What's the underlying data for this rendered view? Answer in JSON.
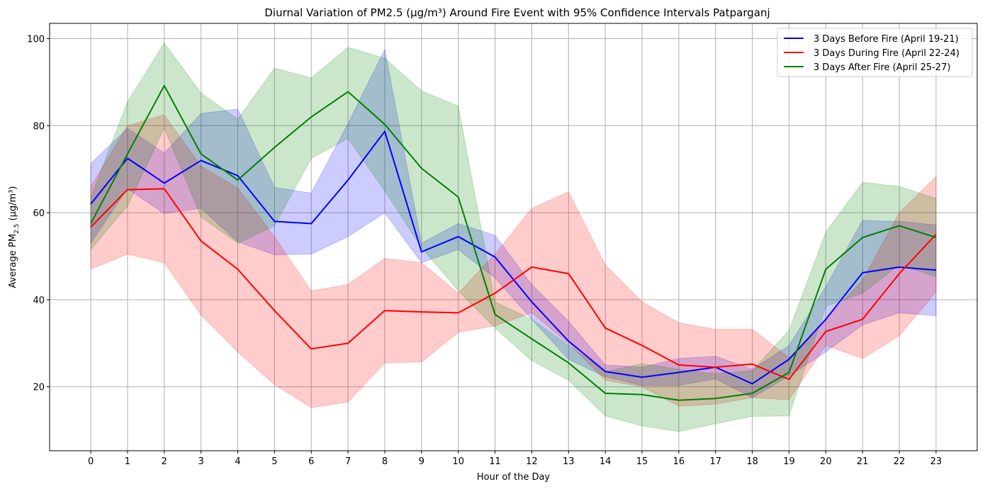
{
  "chart_data": {
    "type": "line",
    "title": "Diurnal Variation of PM2.5 (µg/m³) Around Fire Event with 95% Confidence Intervals Patparganj",
    "xlabel": "Hour of the Day",
    "ylabel_prefix": "Average PM",
    "ylabel_sub": "2.5",
    "ylabel_suffix": " (µg/m³)",
    "x": [
      0,
      1,
      2,
      3,
      4,
      5,
      6,
      7,
      8,
      9,
      10,
      11,
      12,
      13,
      14,
      15,
      16,
      17,
      18,
      19,
      20,
      21,
      22,
      23
    ],
    "xticks": [
      "0",
      "1",
      "2",
      "3",
      "4",
      "5",
      "6",
      "7",
      "8",
      "9",
      "10",
      "11",
      "12",
      "13",
      "14",
      "15",
      "16",
      "17",
      "18",
      "19",
      "20",
      "21",
      "22",
      "23"
    ],
    "xlim": [
      -1.12,
      24.12
    ],
    "ylim": [
      5.3,
      103.5
    ],
    "yticks": [
      20,
      40,
      60,
      80,
      100
    ],
    "ytick_labels": [
      "20",
      "40",
      "60",
      "80",
      "100"
    ],
    "grid": true,
    "legend_position": "top-right",
    "series": [
      {
        "name": "3 Days Before Fire (April 19-21)",
        "color": "#0000ff",
        "values": [
          62,
          72.5,
          66.8,
          72,
          68.5,
          58,
          57.5,
          67.5,
          78.7,
          51,
          54.5,
          49.8,
          39.5,
          30.5,
          23.5,
          22.2,
          23.3,
          24.5,
          20.7,
          26.3,
          35.5,
          46.2,
          47.5,
          46.8
        ],
        "ci_low": [
          53,
          65.5,
          59.8,
          61,
          53.3,
          50.3,
          50.5,
          54.5,
          60,
          48.5,
          51.5,
          45,
          35.5,
          26.3,
          22.3,
          20.3,
          20.3,
          21.8,
          17.5,
          22.5,
          28,
          34.2,
          37,
          36.3
        ],
        "ci_high": [
          71.3,
          79.4,
          73.7,
          82.8,
          83.8,
          65.8,
          64.5,
          80.5,
          97.5,
          53,
          57.5,
          54.8,
          43.5,
          35,
          25,
          24.5,
          26.5,
          27,
          24,
          29.5,
          43,
          58.2,
          58,
          57.2
        ]
      },
      {
        "name": "3 Days During Fire (April 22-24)",
        "color": "#ff0000",
        "values": [
          56.7,
          65.3,
          65.5,
          53.5,
          47,
          37.5,
          28.7,
          30,
          37.5,
          37.2,
          37,
          41.5,
          47.5,
          46,
          33.5,
          29.5,
          25,
          24.5,
          25.2,
          21.7,
          32.7,
          35.5,
          46,
          55
        ],
        "ci_low": [
          47,
          50.5,
          48.5,
          36.5,
          28,
          20.5,
          15.2,
          16.5,
          25.5,
          25.7,
          32.5,
          34,
          37,
          30,
          21.5,
          20,
          15.5,
          16,
          17.5,
          17,
          29.5,
          26.5,
          31.7,
          41.8
        ],
        "ci_high": [
          66,
          80,
          82.5,
          70.7,
          65.7,
          54.5,
          42,
          43.5,
          49.5,
          48.5,
          41.5,
          50.5,
          61,
          64.8,
          48,
          39.5,
          34.7,
          33.2,
          33.2,
          26.7,
          35.5,
          44.5,
          60,
          68.3
        ]
      },
      {
        "name": "3 Days After Fire (April 25-27)",
        "color": "#008000",
        "values": [
          57.5,
          73.5,
          89.2,
          73.5,
          67.5,
          75,
          82,
          87.8,
          80.3,
          70.2,
          63.6,
          36.6,
          31,
          25.5,
          18.5,
          18.2,
          16.9,
          17.3,
          18.5,
          23.3,
          47,
          54.3,
          57,
          54.3
        ],
        "ci_low": [
          51.5,
          61.5,
          79.5,
          59,
          53,
          57,
          72.5,
          77,
          65,
          52,
          42,
          33.5,
          26,
          21.5,
          13.3,
          11,
          9.7,
          11.5,
          13.2,
          13.3,
          38.5,
          41.5,
          48,
          45.3
        ],
        "ci_high": [
          63.5,
          85.5,
          99,
          87.5,
          81.5,
          93.2,
          91,
          98,
          95.5,
          88,
          84.5,
          39.5,
          35.5,
          29.5,
          23.5,
          25.3,
          24,
          23,
          23.7,
          33,
          55.5,
          67,
          66,
          63.3
        ]
      }
    ]
  }
}
